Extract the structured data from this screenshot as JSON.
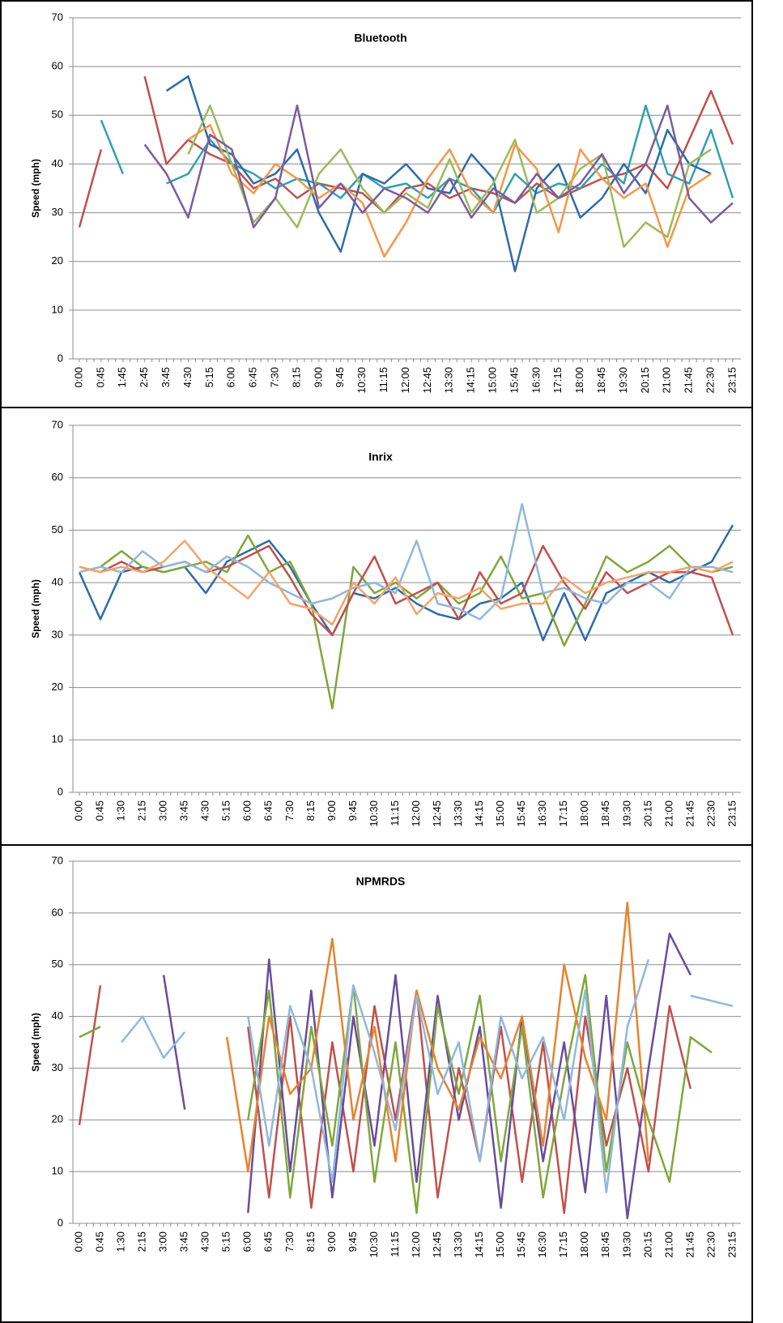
{
  "chart_data": [
    {
      "type": "line",
      "title": "Bluetooth",
      "y_label": "Speed (mph)",
      "categories": [
        "0:00",
        "0:45",
        "1:45",
        "2:45",
        "3:45",
        "4:30",
        "5:15",
        "6:00",
        "6:45",
        "7:30",
        "8:15",
        "9:00",
        "9:45",
        "10:30",
        "11:15",
        "12:00",
        "12:45",
        "13:30",
        "14:15",
        "15:00",
        "15:45",
        "16:30",
        "17:15",
        "18:00",
        "18:45",
        "19:30",
        "20:15",
        "21:00",
        "21:45",
        "22:30",
        "23:15"
      ],
      "series": [
        {
          "color": "#c0504d",
          "values": [
            27,
            43,
            null,
            58,
            40,
            45,
            42,
            40,
            35,
            37,
            33,
            36,
            35,
            34,
            30,
            35,
            36,
            33,
            35,
            34,
            32,
            36,
            33,
            35,
            37,
            38,
            40,
            35,
            45,
            55,
            44
          ]
        },
        {
          "color": "#31a0b0",
          "values": [
            null,
            49,
            38,
            null,
            36,
            38,
            45,
            40,
            38,
            35,
            37,
            36,
            33,
            38,
            35,
            36,
            33,
            37,
            35,
            30,
            38,
            34,
            36,
            35,
            40,
            36,
            52,
            38,
            36,
            47,
            33
          ]
        },
        {
          "color": "#2e6ca8",
          "values": [
            null,
            null,
            null,
            null,
            55,
            58,
            44,
            42,
            36,
            38,
            43,
            30,
            22,
            38,
            36,
            40,
            35,
            34,
            42,
            37,
            18,
            35,
            40,
            29,
            33,
            40,
            34,
            47,
            40,
            38,
            null
          ]
        },
        {
          "color": "#9bbb59",
          "values": [
            null,
            null,
            null,
            null,
            null,
            42,
            52,
            40,
            28,
            33,
            27,
            38,
            43,
            35,
            30,
            34,
            31,
            41,
            30,
            36,
            45,
            30,
            33,
            39,
            42,
            23,
            28,
            25,
            40,
            43,
            null
          ]
        },
        {
          "color": "#f79646",
          "values": [
            null,
            null,
            null,
            null,
            null,
            45,
            48,
            38,
            34,
            40,
            37,
            33,
            36,
            32,
            21,
            28,
            37,
            43,
            34,
            30,
            44,
            39,
            26,
            43,
            37,
            33,
            36,
            23,
            35,
            38,
            null
          ]
        },
        {
          "color": "#7a5ca0",
          "values": [
            null,
            null,
            null,
            44,
            38,
            29,
            46,
            43,
            27,
            33,
            52,
            31,
            36,
            30,
            35,
            33,
            30,
            37,
            29,
            35,
            32,
            38,
            33,
            36,
            42,
            34,
            40,
            52,
            33,
            28,
            32
          ]
        }
      ],
      "ylim": [
        0,
        70
      ],
      "yticks": [
        0,
        10,
        20,
        30,
        40,
        50,
        60,
        70
      ],
      "grid": true
    },
    {
      "type": "line",
      "title": "Inrix",
      "y_label": "Speed (mph)",
      "categories": [
        "0:00",
        "0:45",
        "1:30",
        "2:15",
        "3:00",
        "3:45",
        "4:30",
        "5:15",
        "6:00",
        "6:45",
        "7:30",
        "8:15",
        "9:00",
        "9:45",
        "10:30",
        "11:15",
        "12:00",
        "12:45",
        "13:30",
        "14:15",
        "15:00",
        "15:45",
        "16:30",
        "17:15",
        "18:00",
        "18:45",
        "19:30",
        "20:15",
        "21:00",
        "21:45",
        "22:30",
        "23:15"
      ],
      "series": [
        {
          "color": "#2e6ca8",
          "values": [
            42,
            33,
            42,
            43,
            42,
            43,
            38,
            44,
            46,
            48,
            43,
            36,
            30,
            38,
            37,
            39,
            36,
            34,
            33,
            36,
            37,
            40,
            29,
            38,
            29,
            38,
            40,
            42,
            40,
            42,
            44,
            51
          ]
        },
        {
          "color": "#7ea83a",
          "values": [
            42,
            43,
            46,
            43,
            42,
            43,
            44,
            42,
            49,
            42,
            44,
            36,
            16,
            43,
            38,
            40,
            37,
            40,
            36,
            38,
            45,
            37,
            38,
            28,
            36,
            45,
            42,
            44,
            47,
            43,
            42,
            43
          ]
        },
        {
          "color": "#c0504d",
          "values": [
            43,
            42,
            44,
            42,
            43,
            44,
            42,
            43,
            45,
            47,
            41,
            34,
            30,
            38,
            45,
            36,
            38,
            40,
            33,
            42,
            36,
            38,
            47,
            40,
            35,
            42,
            38,
            40,
            42,
            42,
            41,
            30
          ]
        },
        {
          "color": "#8fb8de",
          "values": [
            42,
            43,
            42,
            46,
            43,
            44,
            42,
            45,
            43,
            40,
            38,
            36,
            37,
            39,
            40,
            38,
            48,
            36,
            35,
            33,
            37,
            55,
            38,
            39,
            37,
            36,
            40,
            40,
            37,
            43,
            43,
            42
          ]
        },
        {
          "color": "#f4a36b",
          "values": [
            43,
            42,
            43,
            42,
            44,
            48,
            43,
            40,
            37,
            42,
            36,
            35,
            32,
            40,
            36,
            41,
            34,
            38,
            37,
            39,
            35,
            36,
            36,
            41,
            38,
            40,
            41,
            42,
            42,
            43,
            42,
            44
          ]
        }
      ],
      "ylim": [
        0,
        70
      ],
      "yticks": [
        0,
        10,
        20,
        30,
        40,
        50,
        60,
        70
      ],
      "grid": true
    },
    {
      "type": "line",
      "title": "NPMRDS",
      "y_label": "Speed (mph)",
      "categories": [
        "0:00",
        "0:45",
        "1:30",
        "2:15",
        "3:00",
        "3:45",
        "4:30",
        "5:15",
        "6:00",
        "6:45",
        "7:30",
        "8:15",
        "9:00",
        "9:45",
        "10:30",
        "11:15",
        "12:00",
        "12:45",
        "13:30",
        "14:15",
        "15:00",
        "15:45",
        "16:30",
        "17:15",
        "18:00",
        "18:45",
        "19:30",
        "20:15",
        "21:00",
        "21:45",
        "22:30",
        "23:15"
      ],
      "series": [
        {
          "color": "#c0504d",
          "values": [
            19,
            46,
            null,
            null,
            null,
            null,
            null,
            null,
            38,
            5,
            40,
            3,
            35,
            10,
            42,
            20,
            45,
            5,
            30,
            12,
            38,
            8,
            35,
            2,
            40,
            15,
            30,
            10,
            42,
            26,
            null,
            null
          ]
        },
        {
          "color": "#6a4c9c",
          "values": [
            null,
            null,
            null,
            null,
            48,
            22,
            null,
            null,
            2,
            51,
            10,
            45,
            5,
            40,
            15,
            48,
            8,
            44,
            20,
            38,
            3,
            40,
            12,
            35,
            6,
            44,
            1,
            30,
            56,
            48,
            null,
            null
          ]
        },
        {
          "color": "#7ea83a",
          "values": [
            36,
            38,
            null,
            null,
            null,
            null,
            null,
            null,
            20,
            45,
            5,
            38,
            15,
            46,
            8,
            35,
            2,
            42,
            25,
            44,
            12,
            38,
            5,
            28,
            48,
            10,
            35,
            20,
            8,
            36,
            33,
            null
          ]
        },
        {
          "color": "#e8822e",
          "values": [
            null,
            null,
            null,
            null,
            null,
            null,
            null,
            36,
            10,
            40,
            25,
            30,
            55,
            20,
            38,
            12,
            45,
            30,
            22,
            36,
            28,
            40,
            15,
            50,
            32,
            20,
            62,
            12,
            null,
            null,
            null,
            null
          ]
        },
        {
          "color": "#8fb8de",
          "values": [
            null,
            null,
            35,
            40,
            32,
            37,
            null,
            null,
            40,
            15,
            42,
            30,
            8,
            46,
            33,
            18,
            44,
            25,
            35,
            12,
            40,
            28,
            36,
            20,
            45,
            6,
            38,
            51,
            null,
            44,
            43,
            42
          ]
        }
      ],
      "ylim": [
        0,
        70
      ],
      "yticks": [
        0,
        10,
        20,
        30,
        40,
        50,
        60,
        70
      ],
      "grid": true
    }
  ]
}
